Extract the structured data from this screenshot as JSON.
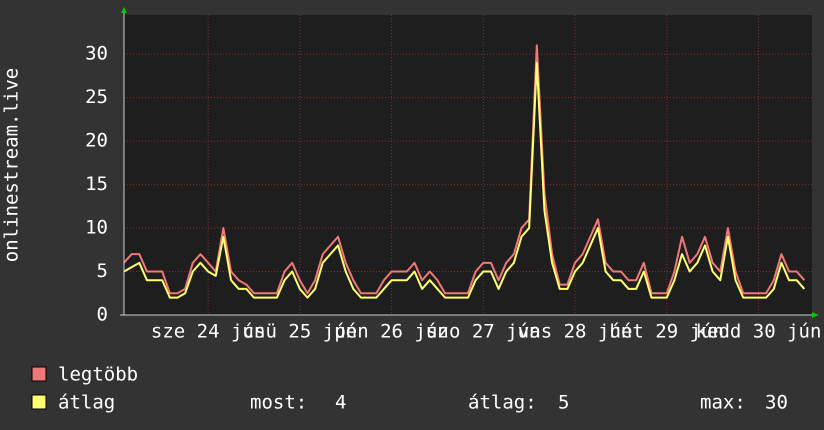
{
  "chart_data": {
    "type": "line",
    "y_label": "onlinestream.live",
    "x": [
      0,
      2,
      4,
      6,
      8,
      10,
      12,
      14,
      16,
      18,
      20,
      22,
      24,
      26,
      28,
      30,
      32,
      34,
      36,
      38,
      40,
      42,
      44,
      46,
      48,
      50,
      52,
      54,
      56,
      58,
      60,
      62,
      64,
      66,
      68,
      70,
      72,
      74,
      76,
      78,
      80,
      82,
      84,
      86,
      88,
      90,
      92,
      94,
      96,
      98,
      100,
      102,
      104,
      106,
      108,
      110,
      112,
      114,
      116,
      118,
      120,
      122,
      124,
      126,
      128,
      130,
      132,
      134,
      136,
      138,
      140,
      142,
      144,
      146,
      148,
      150,
      152,
      154,
      156,
      158,
      160,
      162,
      164,
      166,
      168,
      170,
      172,
      174,
      176,
      178
    ],
    "series": [
      {
        "name": "legtöbb",
        "color": "#f07878",
        "values": [
          6,
          7,
          7,
          5,
          5,
          5,
          2.5,
          2.5,
          3,
          6,
          7,
          6,
          5,
          10,
          5,
          4,
          3.5,
          2.5,
          2.5,
          2.5,
          2.5,
          5,
          6,
          4,
          2.5,
          4,
          7,
          8,
          9,
          6,
          4,
          2.5,
          2.5,
          2.5,
          4,
          5,
          5,
          5,
          6,
          4,
          5,
          4,
          2.5,
          2.5,
          2.5,
          2.5,
          5,
          6,
          6,
          4,
          6,
          7,
          10,
          11,
          31,
          14,
          7,
          3.5,
          3.5,
          6,
          7,
          9,
          11,
          6,
          5,
          5,
          4,
          4,
          6,
          2.5,
          2.5,
          2.5,
          5,
          9,
          6,
          7,
          9,
          6,
          5,
          10,
          5,
          2.5,
          2.5,
          2.5,
          2.5,
          4,
          7,
          5,
          5,
          4
        ]
      },
      {
        "name": "átlag",
        "color": "#ffff70",
        "values": [
          5,
          5.5,
          6,
          4,
          4,
          4,
          2,
          2,
          2.5,
          5,
          6,
          5,
          4.5,
          9,
          4,
          3,
          3,
          2,
          2,
          2,
          2,
          4,
          5,
          3,
          2,
          3,
          6,
          7,
          8,
          5,
          3,
          2,
          2,
          2,
          3,
          4,
          4,
          4,
          5,
          3,
          4,
          3,
          2,
          2,
          2,
          2,
          4,
          5,
          5,
          3,
          5,
          6,
          9,
          10,
          29,
          12,
          6,
          3,
          3,
          5,
          6,
          8,
          10,
          5,
          4,
          4,
          3,
          3,
          5,
          2,
          2,
          2,
          4,
          7,
          5,
          6,
          8,
          5,
          4,
          9,
          4,
          2,
          2,
          2,
          2,
          3,
          6,
          4,
          4,
          3
        ]
      }
    ],
    "xlim": [
      0,
      180
    ],
    "xticks": [
      {
        "value": 22,
        "label": "sze 24 jún"
      },
      {
        "value": 46,
        "label": "csü 25 jún"
      },
      {
        "value": 70,
        "label": "pén 26 jún"
      },
      {
        "value": 94,
        "label": "szo 27 jún"
      },
      {
        "value": 118,
        "label": "vas 28 jún"
      },
      {
        "value": 142,
        "label": "hét 29 jún"
      },
      {
        "value": 166,
        "label": "kedd 30 jún"
      }
    ],
    "ylim": [
      0,
      34.5
    ],
    "yticks": [
      0,
      5,
      10,
      15,
      20,
      25,
      30
    ],
    "grid": true,
    "summary": [
      {
        "label": "most:",
        "value": 4
      },
      {
        "label": "átlag:",
        "value": 5
      },
      {
        "label": "max:",
        "value": 30
      }
    ]
  }
}
